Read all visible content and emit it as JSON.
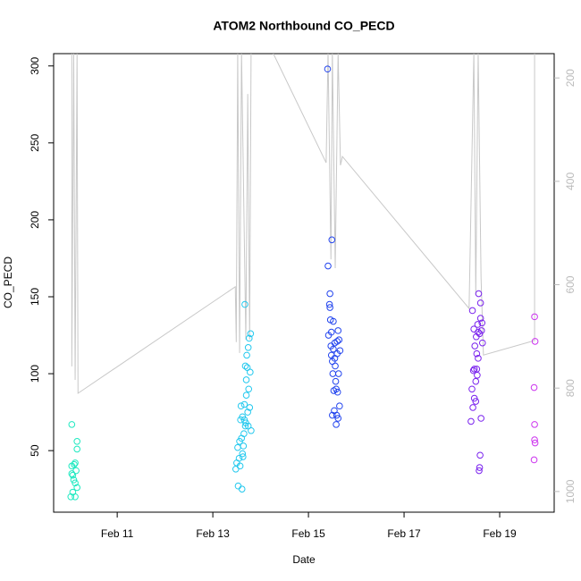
{
  "chart_data": {
    "type": "scatter",
    "title": "ATOM2 Northbound CO_PECD",
    "x_label": "Date",
    "y_label": "CO_PECD",
    "xlim": [
      9.67,
      20.14
    ],
    "xticks": [
      {
        "value": 11,
        "label": "Feb 11"
      },
      {
        "value": 13,
        "label": "Feb 13"
      },
      {
        "value": 15,
        "label": "Feb 15"
      },
      {
        "value": 17,
        "label": "Feb 17"
      },
      {
        "value": 19,
        "label": "Feb 19"
      }
    ],
    "ylim": [
      10,
      308
    ],
    "yticks": [
      50,
      100,
      150,
      200,
      250,
      300
    ],
    "y2lim": [
      1040,
      153
    ],
    "y2ticks": [
      200,
      400,
      600,
      800,
      1000
    ],
    "series": [
      {
        "color": "#c8c8c8",
        "type": "line",
        "axis": "y2",
        "x": [
          10.05,
          10.05,
          10.09,
          10.12,
          10.16,
          10.18,
          13.47,
          13.49,
          13.52,
          13.56,
          13.6,
          13.69,
          13.73,
          13.77,
          13.8,
          14.25,
          15.37,
          15.41,
          15.47,
          15.5,
          15.56,
          15.62,
          15.67,
          15.71,
          18.36,
          18.46,
          18.5,
          18.55,
          18.61,
          18.66,
          19.73,
          19.73
        ],
        "values": [
          150,
          758,
          150,
          784,
          150,
          810,
          604,
          711,
          150,
          732,
          150,
          706,
          231,
          706,
          150,
          150,
          364,
          150,
          551,
          150,
          568,
          150,
          369,
          352,
          646,
          150,
          620,
          150,
          585,
          736,
          708,
          150
        ]
      },
      {
        "color": "#1de9c0",
        "x": [
          10.05,
          10.1,
          10.05,
          10.16,
          10.16,
          10.12,
          10.05,
          10.14,
          10.09,
          10.12,
          10.16,
          10.07,
          10.03,
          10.12,
          10.07
        ],
        "values": [
          67,
          41,
          40,
          56,
          51,
          42,
          35,
          37,
          31,
          29,
          26,
          23,
          20,
          20,
          34
        ]
      },
      {
        "color": "#22c8ee",
        "x": [
          13.48,
          13.5,
          13.52,
          13.53,
          13.55,
          13.56,
          13.57,
          13.58,
          13.59,
          13.6,
          13.61,
          13.62,
          13.63,
          13.64,
          13.65,
          13.66,
          13.67,
          13.68,
          13.69,
          13.7,
          13.71,
          13.72,
          13.73,
          13.74,
          13.75,
          13.76,
          13.77,
          13.78,
          13.79,
          13.8,
          13.62,
          13.66,
          13.7,
          13.74,
          13.68
        ],
        "values": [
          38,
          42,
          52,
          27,
          45,
          56,
          40,
          70,
          79,
          58,
          25,
          72,
          46,
          53,
          61,
          80,
          145,
          105,
          68,
          96,
          112,
          104,
          75,
          66,
          90,
          123,
          78,
          101,
          126,
          63,
          48,
          70,
          86,
          117,
          66
        ]
      },
      {
        "color": "#2244ee",
        "x": [
          15.4,
          15.41,
          15.42,
          15.44,
          15.45,
          15.46,
          15.47,
          15.48,
          15.49,
          15.5,
          15.51,
          15.52,
          15.53,
          15.54,
          15.55,
          15.56,
          15.57,
          15.58,
          15.59,
          15.6,
          15.61,
          15.62,
          15.63,
          15.64,
          15.65,
          15.66,
          15.5,
          15.55,
          15.6,
          15.45,
          15.58,
          15.62,
          15.48,
          15.52
        ],
        "values": [
          298,
          170,
          125,
          145,
          152,
          135,
          118,
          112,
          187,
          108,
          100,
          134,
          89,
          76,
          120,
          105,
          95,
          67,
          73,
          113,
          88,
          128,
          100,
          122,
          79,
          115,
          73,
          110,
          121,
          143,
          90,
          71,
          127,
          116
        ]
      },
      {
        "color": "#7a22ee",
        "x": [
          18.4,
          18.42,
          18.43,
          18.44,
          18.45,
          18.46,
          18.47,
          18.48,
          18.5,
          18.51,
          18.52,
          18.53,
          18.54,
          18.55,
          18.56,
          18.57,
          18.58,
          18.59,
          18.6,
          18.61,
          18.62,
          18.63,
          18.64,
          18.47,
          18.5,
          18.55,
          18.6,
          18.52,
          18.58
        ],
        "values": [
          69,
          90,
          141,
          78,
          102,
          129,
          84,
          118,
          82,
          124,
          113,
          99,
          132,
          110,
          152,
          37,
          39,
          47,
          136,
          71,
          128,
          133,
          120,
          103,
          95,
          127,
          146,
          103,
          126
        ]
      },
      {
        "color": "#cc33ee",
        "x": [
          19.73,
          19.74,
          19.72,
          19.73,
          19.73,
          19.74,
          19.72
        ],
        "values": [
          137,
          121,
          91,
          67,
          57,
          55,
          44
        ]
      }
    ]
  }
}
